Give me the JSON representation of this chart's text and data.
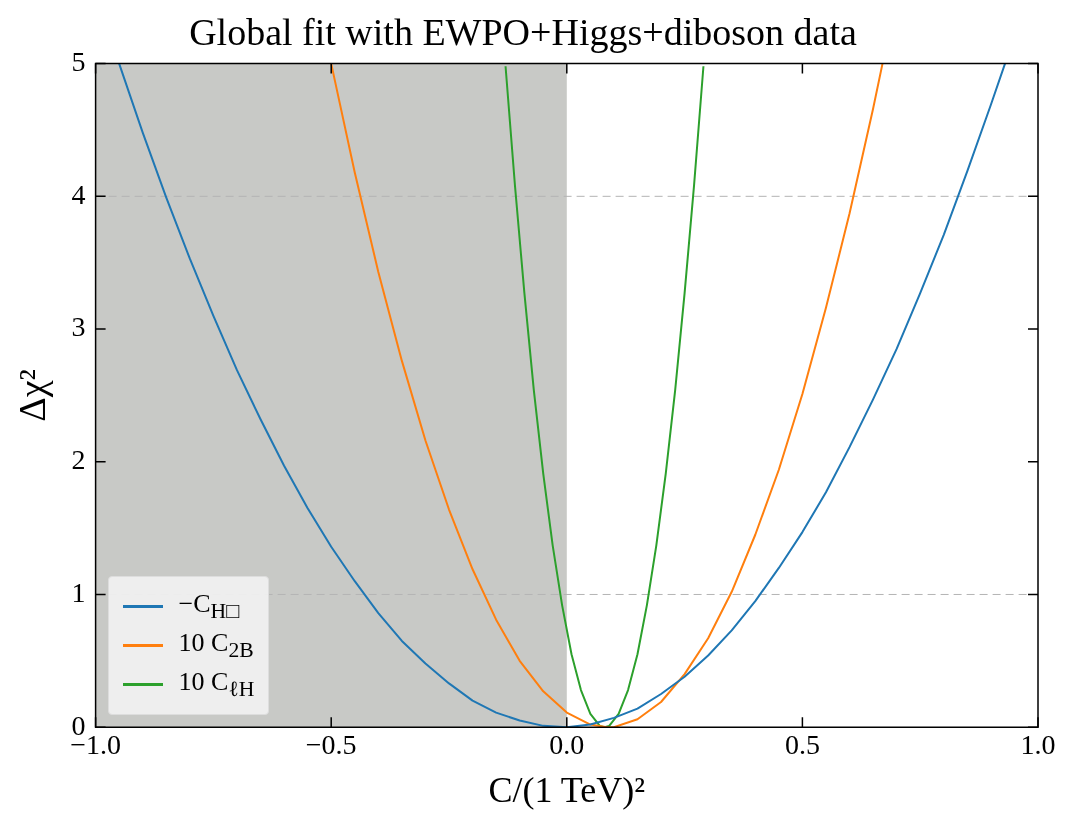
{
  "chart_data": {
    "type": "line",
    "title": "Global fit with EWPO+Higgs+diboson data",
    "xlabel": "C/(1 TeV)²",
    "ylabel": "Δχ²",
    "xlim": [
      -1,
      1
    ],
    "xticks": [
      {
        "value": -1,
        "label": "−1.0"
      },
      {
        "value": -0.5,
        "label": "−0.5"
      },
      {
        "value": 0,
        "label": "0.0"
      },
      {
        "value": 0.5,
        "label": "0.5"
      },
      {
        "value": 1,
        "label": "1.0"
      }
    ],
    "ylim": [
      0,
      5
    ],
    "yticks": [
      0,
      1,
      2,
      3,
      4,
      5
    ],
    "legend": "bottom left",
    "bands": [
      {
        "axis": "x",
        "from": -1,
        "to": 0,
        "color": "#c8c9c6"
      }
    ],
    "ref_lines": [
      {
        "axis": "y",
        "value": 1,
        "color": "#b4b4b4",
        "line_style": "dashed"
      },
      {
        "axis": "y",
        "value": 4,
        "color": "#b4b4b4",
        "line_style": "dashed"
      }
    ],
    "series": [
      {
        "name": "−C$_{H□}$",
        "color": "#1f77b4",
        "x": [
          -0.95,
          -0.9,
          -0.85,
          -0.8,
          -0.75,
          -0.7,
          -0.65,
          -0.6,
          -0.55,
          -0.5,
          -0.45,
          -0.4,
          -0.35,
          -0.3,
          -0.25,
          -0.2,
          -0.15,
          -0.1,
          -0.05,
          0,
          0.05,
          0.1,
          0.15,
          0.2,
          0.25,
          0.3,
          0.35,
          0.4,
          0.45,
          0.5,
          0.55,
          0.6,
          0.65,
          0.7,
          0.75,
          0.8,
          0.85,
          0.9,
          0.93
        ],
        "values": [
          5.0,
          4.48,
          3.99,
          3.53,
          3.1,
          2.69,
          2.32,
          1.97,
          1.65,
          1.36,
          1.1,
          0.86,
          0.65,
          0.48,
          0.33,
          0.2,
          0.11,
          0.05,
          0.01,
          0.0,
          0.02,
          0.07,
          0.14,
          0.25,
          0.38,
          0.54,
          0.73,
          0.95,
          1.2,
          1.47,
          1.77,
          2.11,
          2.47,
          2.85,
          3.27,
          3.71,
          4.19,
          4.69,
          5.0
        ]
      },
      {
        "name": "10 C$_{2B}$",
        "color": "#ff7f0e",
        "x": [
          -0.5,
          -0.45,
          -0.4,
          -0.35,
          -0.3,
          -0.25,
          -0.2,
          -0.15,
          -0.1,
          -0.05,
          0,
          0.05,
          0.085,
          0.1,
          0.15,
          0.2,
          0.25,
          0.3,
          0.35,
          0.4,
          0.45,
          0.5,
          0.55,
          0.6,
          0.65,
          0.67
        ],
        "values": [
          5.0,
          4.18,
          3.43,
          2.76,
          2.16,
          1.64,
          1.19,
          0.81,
          0.5,
          0.27,
          0.11,
          0.02,
          0.0,
          0.0,
          0.06,
          0.19,
          0.4,
          0.67,
          1.02,
          1.45,
          1.94,
          2.51,
          3.16,
          3.87,
          4.66,
          5.0
        ]
      },
      {
        "name": "10 C$_{ℓH}$",
        "color": "#2ca02c",
        "x": [
          -0.13,
          -0.11,
          -0.09,
          -0.07,
          -0.05,
          -0.03,
          -0.01,
          0.01,
          0.03,
          0.05,
          0.07,
          0.08,
          0.09,
          0.11,
          0.13,
          0.15,
          0.17,
          0.19,
          0.21,
          0.23,
          0.25,
          0.27,
          0.29
        ],
        "values": [
          4.98,
          4.08,
          3.27,
          2.54,
          1.91,
          1.37,
          0.92,
          0.55,
          0.28,
          0.1,
          0.01,
          0.0,
          0.01,
          0.1,
          0.28,
          0.55,
          0.92,
          1.37,
          1.91,
          2.54,
          3.27,
          4.08,
          4.98
        ]
      }
    ]
  }
}
